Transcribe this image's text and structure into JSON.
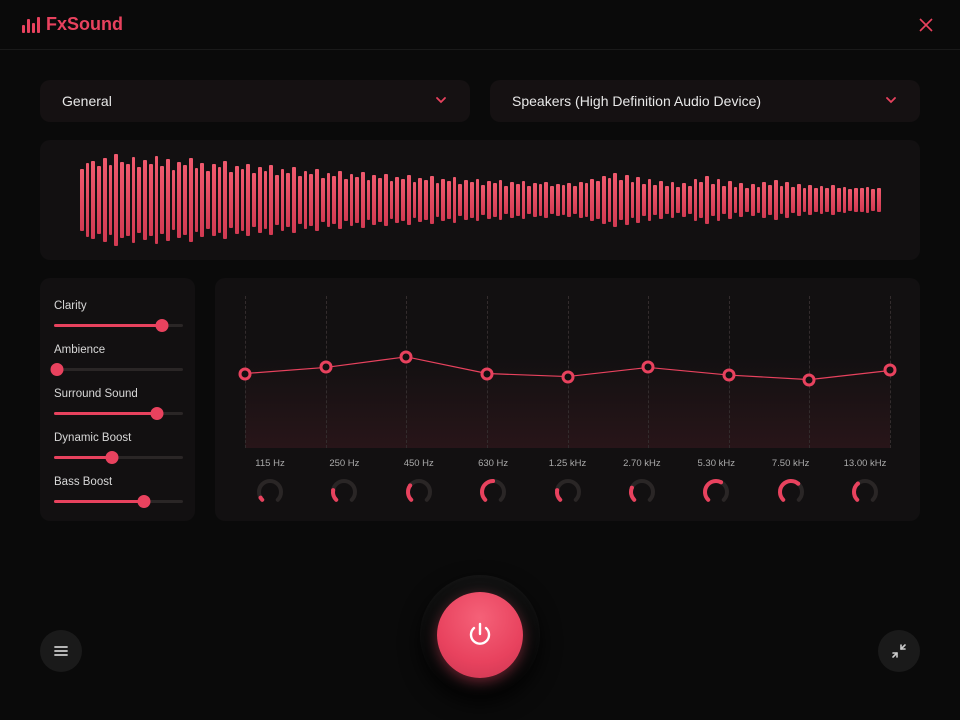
{
  "app_name": "FxSound",
  "accent_color": "#e8425e",
  "background_color": "#0a0a0a",
  "panel_color": "#121011",
  "preset_dropdown": {
    "selected": "General"
  },
  "device_dropdown": {
    "selected": "Speakers (High Definition Audio Device)"
  },
  "waveform": {
    "bar_count": 140,
    "heights_pct": [
      65,
      78,
      82,
      70,
      88,
      72,
      95,
      80,
      74,
      90,
      68,
      84,
      76,
      92,
      70,
      86,
      62,
      80,
      72,
      88,
      66,
      78,
      60,
      74,
      68,
      82,
      58,
      70,
      64,
      76,
      56,
      68,
      60,
      72,
      52,
      64,
      56,
      68,
      50,
      60,
      54,
      64,
      46,
      56,
      50,
      60,
      44,
      54,
      48,
      58,
      42,
      52,
      46,
      54,
      40,
      48,
      44,
      52,
      38,
      46,
      42,
      50,
      36,
      44,
      40,
      48,
      34,
      42,
      38,
      44,
      32,
      40,
      36,
      42,
      30,
      38,
      34,
      40,
      30,
      36,
      34,
      38,
      30,
      34,
      32,
      36,
      30,
      38,
      36,
      44,
      40,
      50,
      46,
      56,
      42,
      52,
      38,
      48,
      34,
      44,
      32,
      40,
      30,
      38,
      28,
      36,
      30,
      44,
      38,
      50,
      34,
      44,
      30,
      40,
      28,
      36,
      26,
      34,
      28,
      38,
      32,
      42,
      30,
      38,
      28,
      34,
      26,
      32,
      24,
      30,
      26,
      32,
      24,
      28,
      22,
      26,
      24,
      28,
      22,
      26
    ],
    "bar_color_top": "#f05a6e",
    "bar_color_bottom": "#d13a52"
  },
  "effects": [
    {
      "name": "Clarity",
      "value": 0.84
    },
    {
      "name": "Ambience",
      "value": 0.02
    },
    {
      "name": "Surround Sound",
      "value": 0.8
    },
    {
      "name": "Dynamic Boost",
      "value": 0.45
    },
    {
      "name": "Bass Boost",
      "value": 0.7
    }
  ],
  "equalizer": {
    "line_color": "#e8425e",
    "dash_color": "#332c2d",
    "bands": [
      {
        "freq": "115 Hz",
        "graph_y": 0.51,
        "knob": 0.05
      },
      {
        "freq": "250 Hz",
        "graph_y": 0.47,
        "knob": 0.2
      },
      {
        "freq": "450 Hz",
        "graph_y": 0.4,
        "knob": 0.3
      },
      {
        "freq": "630 Hz",
        "graph_y": 0.51,
        "knob": 0.5
      },
      {
        "freq": "1.25 kHz",
        "graph_y": 0.53,
        "knob": 0.2
      },
      {
        "freq": "2.70 kHz",
        "graph_y": 0.47,
        "knob": 0.25
      },
      {
        "freq": "5.30 kHz",
        "graph_y": 0.52,
        "knob": 0.6
      },
      {
        "freq": "7.50 kHz",
        "graph_y": 0.55,
        "knob": 0.65
      },
      {
        "freq": "13.00 kHz",
        "graph_y": 0.49,
        "knob": 0.35
      }
    ]
  },
  "power_on": true
}
